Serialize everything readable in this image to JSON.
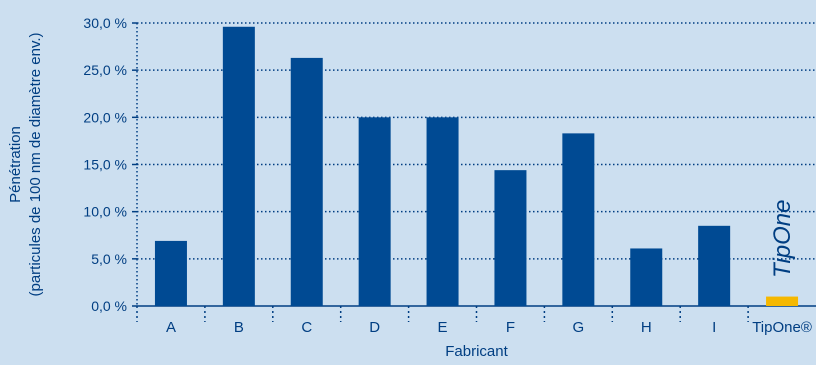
{
  "chart_data": {
    "type": "bar",
    "categories": [
      "A",
      "B",
      "C",
      "D",
      "E",
      "F",
      "G",
      "H",
      "I",
      "TipOne®"
    ],
    "values": [
      6.9,
      29.6,
      26.3,
      20.0,
      20.0,
      14.4,
      18.3,
      6.1,
      8.5,
      1.0
    ],
    "xlabel": "Fabricant",
    "ylabel_lines": [
      "Pénétration",
      "(particules de 100 nm de diamètre env.)"
    ],
    "ylim": [
      0,
      30
    ],
    "yticks": [
      0,
      5,
      10,
      15,
      20,
      25,
      30
    ],
    "ytick_labels": [
      "0,0 %",
      "5,0 %",
      "10,0 %",
      "15,0 %",
      "20,0 %",
      "25,0 %",
      "30,0 %"
    ],
    "grid": true,
    "bar_color": "#004a93",
    "highlight_color": "#f5b800",
    "highlight_category": "TipOne®",
    "background": "#ccdff0",
    "text_color": "#003e82",
    "brand_logo_text": "TipOne"
  }
}
